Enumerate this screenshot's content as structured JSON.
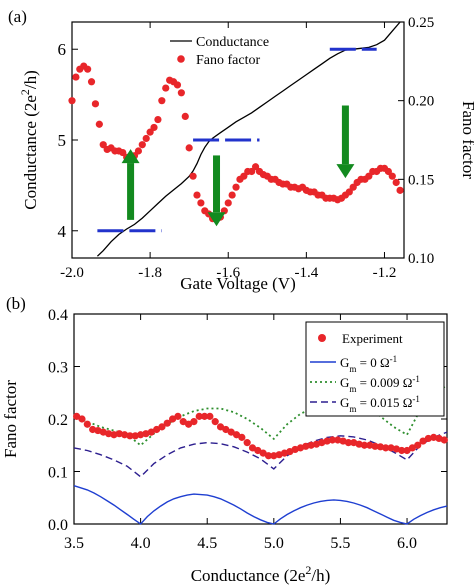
{
  "chart_data": [
    {
      "panel_label": "(a)",
      "type": "line",
      "xlabel": "Gate Voltage (V)",
      "ylabel_left": {
        "pre": "Conductance (2e",
        "sup": "2",
        "post": "/h)"
      },
      "ylabel_right": "Fano factor",
      "xlim": [
        -2.0,
        -1.15
      ],
      "ylim_left": [
        3.7,
        6.3
      ],
      "ylim_right": [
        0.1,
        0.25
      ],
      "x_ticks": [
        -2.0,
        -1.8,
        -1.6,
        -1.4,
        -1.2
      ],
      "x_tick_labels": [
        "-2.0",
        "-1.8",
        "-1.6",
        "-1.4",
        "-1.2"
      ],
      "y_left_ticks": [
        4,
        5,
        6
      ],
      "y_left_tick_labels": [
        "4",
        "5",
        "6"
      ],
      "y_right_ticks": [
        0.1,
        0.15,
        0.2,
        0.25
      ],
      "y_right_tick_labels": [
        "0.10",
        "0.15",
        "0.20",
        "0.25"
      ],
      "legend": {
        "placement": "top-center",
        "entries": [
          "Conductance",
          "Fano factor"
        ]
      },
      "series": [
        {
          "name": "Conductance",
          "axis": "left",
          "style": "line",
          "color": "#000000",
          "x": [
            -1.935,
            -1.92,
            -1.9,
            -1.88,
            -1.86,
            -1.84,
            -1.82,
            -1.8,
            -1.78,
            -1.76,
            -1.74,
            -1.72,
            -1.7,
            -1.69,
            -1.68,
            -1.67,
            -1.66,
            -1.65,
            -1.64,
            -1.62,
            -1.6,
            -1.58,
            -1.56,
            -1.54,
            -1.52,
            -1.5,
            -1.48,
            -1.46,
            -1.44,
            -1.42,
            -1.4,
            -1.38,
            -1.36,
            -1.34,
            -1.32,
            -1.3,
            -1.28,
            -1.26,
            -1.24,
            -1.22,
            -1.2,
            -1.18,
            -1.16
          ],
          "y": [
            3.72,
            3.78,
            3.88,
            3.96,
            4.02,
            4.07,
            4.14,
            4.22,
            4.3,
            4.38,
            4.45,
            4.52,
            4.6,
            4.66,
            4.74,
            4.84,
            4.92,
            4.98,
            5.02,
            5.08,
            5.14,
            5.2,
            5.25,
            5.3,
            5.36,
            5.42,
            5.48,
            5.54,
            5.6,
            5.66,
            5.72,
            5.78,
            5.84,
            5.9,
            5.95,
            5.99,
            6.0,
            6.01,
            6.02,
            6.05,
            6.1,
            6.2,
            6.3
          ]
        },
        {
          "name": "Fano factor",
          "axis": "right",
          "style": "markers",
          "color": "#e8262a",
          "x": [
            -2.0,
            -1.99,
            -1.98,
            -1.97,
            -1.96,
            -1.95,
            -1.94,
            -1.93,
            -1.92,
            -1.91,
            -1.9,
            -1.89,
            -1.88,
            -1.87,
            -1.86,
            -1.85,
            -1.84,
            -1.83,
            -1.82,
            -1.81,
            -1.8,
            -1.79,
            -1.78,
            -1.77,
            -1.76,
            -1.75,
            -1.74,
            -1.73,
            -1.72,
            -1.71,
            -1.7,
            -1.69,
            -1.68,
            -1.67,
            -1.66,
            -1.65,
            -1.64,
            -1.63,
            -1.62,
            -1.61,
            -1.6,
            -1.59,
            -1.58,
            -1.57,
            -1.56,
            -1.55,
            -1.54,
            -1.53,
            -1.52,
            -1.51,
            -1.5,
            -1.49,
            -1.48,
            -1.47,
            -1.46,
            -1.45,
            -1.44,
            -1.43,
            -1.42,
            -1.41,
            -1.4,
            -1.39,
            -1.38,
            -1.37,
            -1.36,
            -1.35,
            -1.34,
            -1.33,
            -1.32,
            -1.31,
            -1.3,
            -1.29,
            -1.28,
            -1.27,
            -1.26,
            -1.25,
            -1.24,
            -1.23,
            -1.22,
            -1.21,
            -1.2,
            -1.19,
            -1.18,
            -1.17,
            -1.16
          ],
          "y": [
            0.2,
            0.215,
            0.22,
            0.222,
            0.22,
            0.212,
            0.198,
            0.185,
            0.172,
            0.169,
            0.17,
            0.168,
            0.168,
            0.167,
            0.164,
            0.163,
            0.165,
            0.168,
            0.172,
            0.176,
            0.18,
            0.183,
            0.188,
            0.2,
            0.208,
            0.213,
            0.212,
            0.21,
            0.205,
            0.19,
            0.17,
            0.152,
            0.14,
            0.135,
            0.13,
            0.128,
            0.125,
            0.125,
            0.126,
            0.13,
            0.135,
            0.14,
            0.145,
            0.15,
            0.152,
            0.155,
            0.155,
            0.158,
            0.155,
            0.153,
            0.152,
            0.15,
            0.15,
            0.148,
            0.147,
            0.147,
            0.145,
            0.145,
            0.144,
            0.145,
            0.143,
            0.142,
            0.142,
            0.14,
            0.14,
            0.138,
            0.138,
            0.138,
            0.137,
            0.138,
            0.14,
            0.142,
            0.145,
            0.148,
            0.15,
            0.15,
            0.152,
            0.155,
            0.155,
            0.157,
            0.157,
            0.155,
            0.152,
            0.148,
            0.143
          ]
        },
        {
          "name": "",
          "axis": "left",
          "style": "plateaus",
          "color": "#2233cc",
          "segments": [
            [
              -1.935,
              -1.77,
              4
            ],
            [
              -1.69,
              -1.52,
              5
            ],
            [
              -1.34,
              -1.22,
              6
            ]
          ]
        }
      ],
      "arrows": [
        {
          "x": -1.85,
          "direction": "up",
          "y_tail": 4.12,
          "y_head": 4.9,
          "color": "#138a1f"
        },
        {
          "x": -1.63,
          "direction": "down",
          "y_tail": 4.83,
          "y_head": 4.05,
          "color": "#138a1f"
        },
        {
          "x": -1.3,
          "direction": "down",
          "y_tail": 5.38,
          "y_head": 4.58,
          "color": "#138a1f"
        }
      ]
    },
    {
      "panel_label": "(b)",
      "type": "line",
      "xlabel": {
        "pre": "Conductance (2e",
        "sup": "2",
        "post": "/h)"
      },
      "ylabel": "Fano factor",
      "xlim": [
        3.5,
        6.3
      ],
      "ylim": [
        0.0,
        0.4
      ],
      "x_ticks": [
        3.5,
        4.0,
        4.5,
        5.0,
        5.5,
        6.0
      ],
      "x_tick_labels": [
        "3.5",
        "4.0",
        "4.5",
        "5.0",
        "5.5",
        "6.0"
      ],
      "y_ticks": [
        0.0,
        0.1,
        0.2,
        0.3,
        0.4
      ],
      "y_tick_labels": [
        "0.0",
        "0.1",
        "0.2",
        "0.3",
        "0.4"
      ],
      "legend": {
        "placement": "top-right"
      },
      "series": [
        {
          "name": "Experiment",
          "style": "markers",
          "color": "#e8262a",
          "x": [
            3.52,
            3.56,
            3.6,
            3.64,
            3.68,
            3.72,
            3.76,
            3.8,
            3.84,
            3.88,
            3.92,
            3.96,
            4.0,
            4.04,
            4.08,
            4.12,
            4.16,
            4.2,
            4.24,
            4.28,
            4.32,
            4.36,
            4.4,
            4.44,
            4.48,
            4.52,
            4.56,
            4.6,
            4.64,
            4.68,
            4.72,
            4.76,
            4.8,
            4.84,
            4.88,
            4.92,
            4.96,
            5.0,
            5.04,
            5.08,
            5.12,
            5.16,
            5.2,
            5.24,
            5.28,
            5.32,
            5.36,
            5.4,
            5.44,
            5.48,
            5.52,
            5.56,
            5.6,
            5.64,
            5.68,
            5.72,
            5.76,
            5.8,
            5.84,
            5.88,
            5.92,
            5.96,
            6.0,
            6.04,
            6.08,
            6.12,
            6.16,
            6.2,
            6.24,
            6.28
          ],
          "y": [
            0.205,
            0.2,
            0.19,
            0.18,
            0.178,
            0.175,
            0.172,
            0.17,
            0.172,
            0.17,
            0.168,
            0.168,
            0.17,
            0.172,
            0.175,
            0.18,
            0.185,
            0.192,
            0.2,
            0.205,
            0.195,
            0.19,
            0.195,
            0.205,
            0.205,
            0.205,
            0.195,
            0.185,
            0.18,
            0.175,
            0.17,
            0.165,
            0.155,
            0.145,
            0.14,
            0.135,
            0.13,
            0.13,
            0.132,
            0.135,
            0.138,
            0.142,
            0.145,
            0.148,
            0.15,
            0.152,
            0.155,
            0.158,
            0.16,
            0.16,
            0.158,
            0.155,
            0.155,
            0.152,
            0.15,
            0.15,
            0.148,
            0.147,
            0.145,
            0.145,
            0.143,
            0.14,
            0.14,
            0.145,
            0.15,
            0.158,
            0.163,
            0.165,
            0.163,
            0.16
          ]
        },
        {
          "name": {
            "pre": "G",
            "sub": "m",
            "post": " = 0 Ω",
            "sup": "-1"
          },
          "style": "solid",
          "color": "#1f3fd1",
          "x": [
            3.5,
            3.55,
            3.6,
            3.65,
            3.7,
            3.75,
            3.8,
            3.85,
            3.9,
            3.95,
            4.0,
            4.05,
            4.1,
            4.15,
            4.2,
            4.25,
            4.3,
            4.35,
            4.4,
            4.45,
            4.5,
            4.55,
            4.6,
            4.65,
            4.7,
            4.75,
            4.8,
            4.85,
            4.9,
            4.95,
            5.0,
            5.05,
            5.1,
            5.15,
            5.2,
            5.25,
            5.3,
            5.35,
            5.4,
            5.45,
            5.5,
            5.55,
            5.6,
            5.65,
            5.7,
            5.75,
            5.8,
            5.85,
            5.9,
            5.95,
            6.0,
            6.05,
            6.1,
            6.15,
            6.2,
            6.25,
            6.3
          ],
          "y": [
            0.073,
            0.069,
            0.065,
            0.059,
            0.052,
            0.044,
            0.036,
            0.027,
            0.018,
            0.009,
            0.0,
            0.014,
            0.025,
            0.034,
            0.042,
            0.048,
            0.052,
            0.055,
            0.057,
            0.056,
            0.055,
            0.052,
            0.048,
            0.042,
            0.036,
            0.029,
            0.021,
            0.014,
            0.008,
            0.003,
            0.0,
            0.01,
            0.018,
            0.025,
            0.031,
            0.036,
            0.04,
            0.043,
            0.045,
            0.046,
            0.045,
            0.043,
            0.04,
            0.036,
            0.031,
            0.025,
            0.019,
            0.013,
            0.007,
            0.003,
            0.0,
            0.009,
            0.016,
            0.022,
            0.027,
            0.031,
            0.034
          ]
        },
        {
          "name": {
            "pre": "G",
            "sub": "m",
            "post": " = 0.009 Ω",
            "sup": "-1"
          },
          "style": "dotted",
          "color": "#2e8f2e",
          "x": [
            3.5,
            3.6,
            3.7,
            3.8,
            3.9,
            4.0,
            4.1,
            4.2,
            4.3,
            4.4,
            4.5,
            4.6,
            4.7,
            4.8,
            4.9,
            5.0,
            5.1,
            5.2,
            5.3,
            5.4,
            5.5,
            5.6,
            5.7,
            5.8,
            5.9,
            6.0,
            6.1,
            6.2,
            6.3
          ],
          "y": [
            0.205,
            0.195,
            0.185,
            0.178,
            0.17,
            0.15,
            0.172,
            0.19,
            0.205,
            0.215,
            0.22,
            0.22,
            0.213,
            0.2,
            0.183,
            0.162,
            0.19,
            0.21,
            0.222,
            0.228,
            0.23,
            0.228,
            0.22,
            0.205,
            0.185,
            0.17,
            0.218,
            0.245,
            0.265
          ]
        },
        {
          "name": {
            "pre": "G",
            "sub": "m",
            "post": " = 0.015 Ω",
            "sup": "-1"
          },
          "style": "dashed",
          "color": "#2d1f8f",
          "x": [
            3.5,
            3.6,
            3.7,
            3.8,
            3.9,
            4.0,
            4.1,
            4.2,
            4.3,
            4.4,
            4.5,
            4.6,
            4.7,
            4.8,
            4.9,
            5.0,
            5.1,
            5.2,
            5.3,
            5.4,
            5.5,
            5.6,
            5.7,
            5.8,
            5.9,
            6.0,
            6.1,
            6.2,
            6.3
          ],
          "y": [
            0.145,
            0.14,
            0.132,
            0.122,
            0.11,
            0.09,
            0.115,
            0.132,
            0.145,
            0.152,
            0.155,
            0.153,
            0.147,
            0.137,
            0.124,
            0.105,
            0.13,
            0.147,
            0.158,
            0.165,
            0.168,
            0.166,
            0.16,
            0.15,
            0.137,
            0.122,
            0.15,
            0.165,
            0.175
          ]
        }
      ]
    }
  ]
}
